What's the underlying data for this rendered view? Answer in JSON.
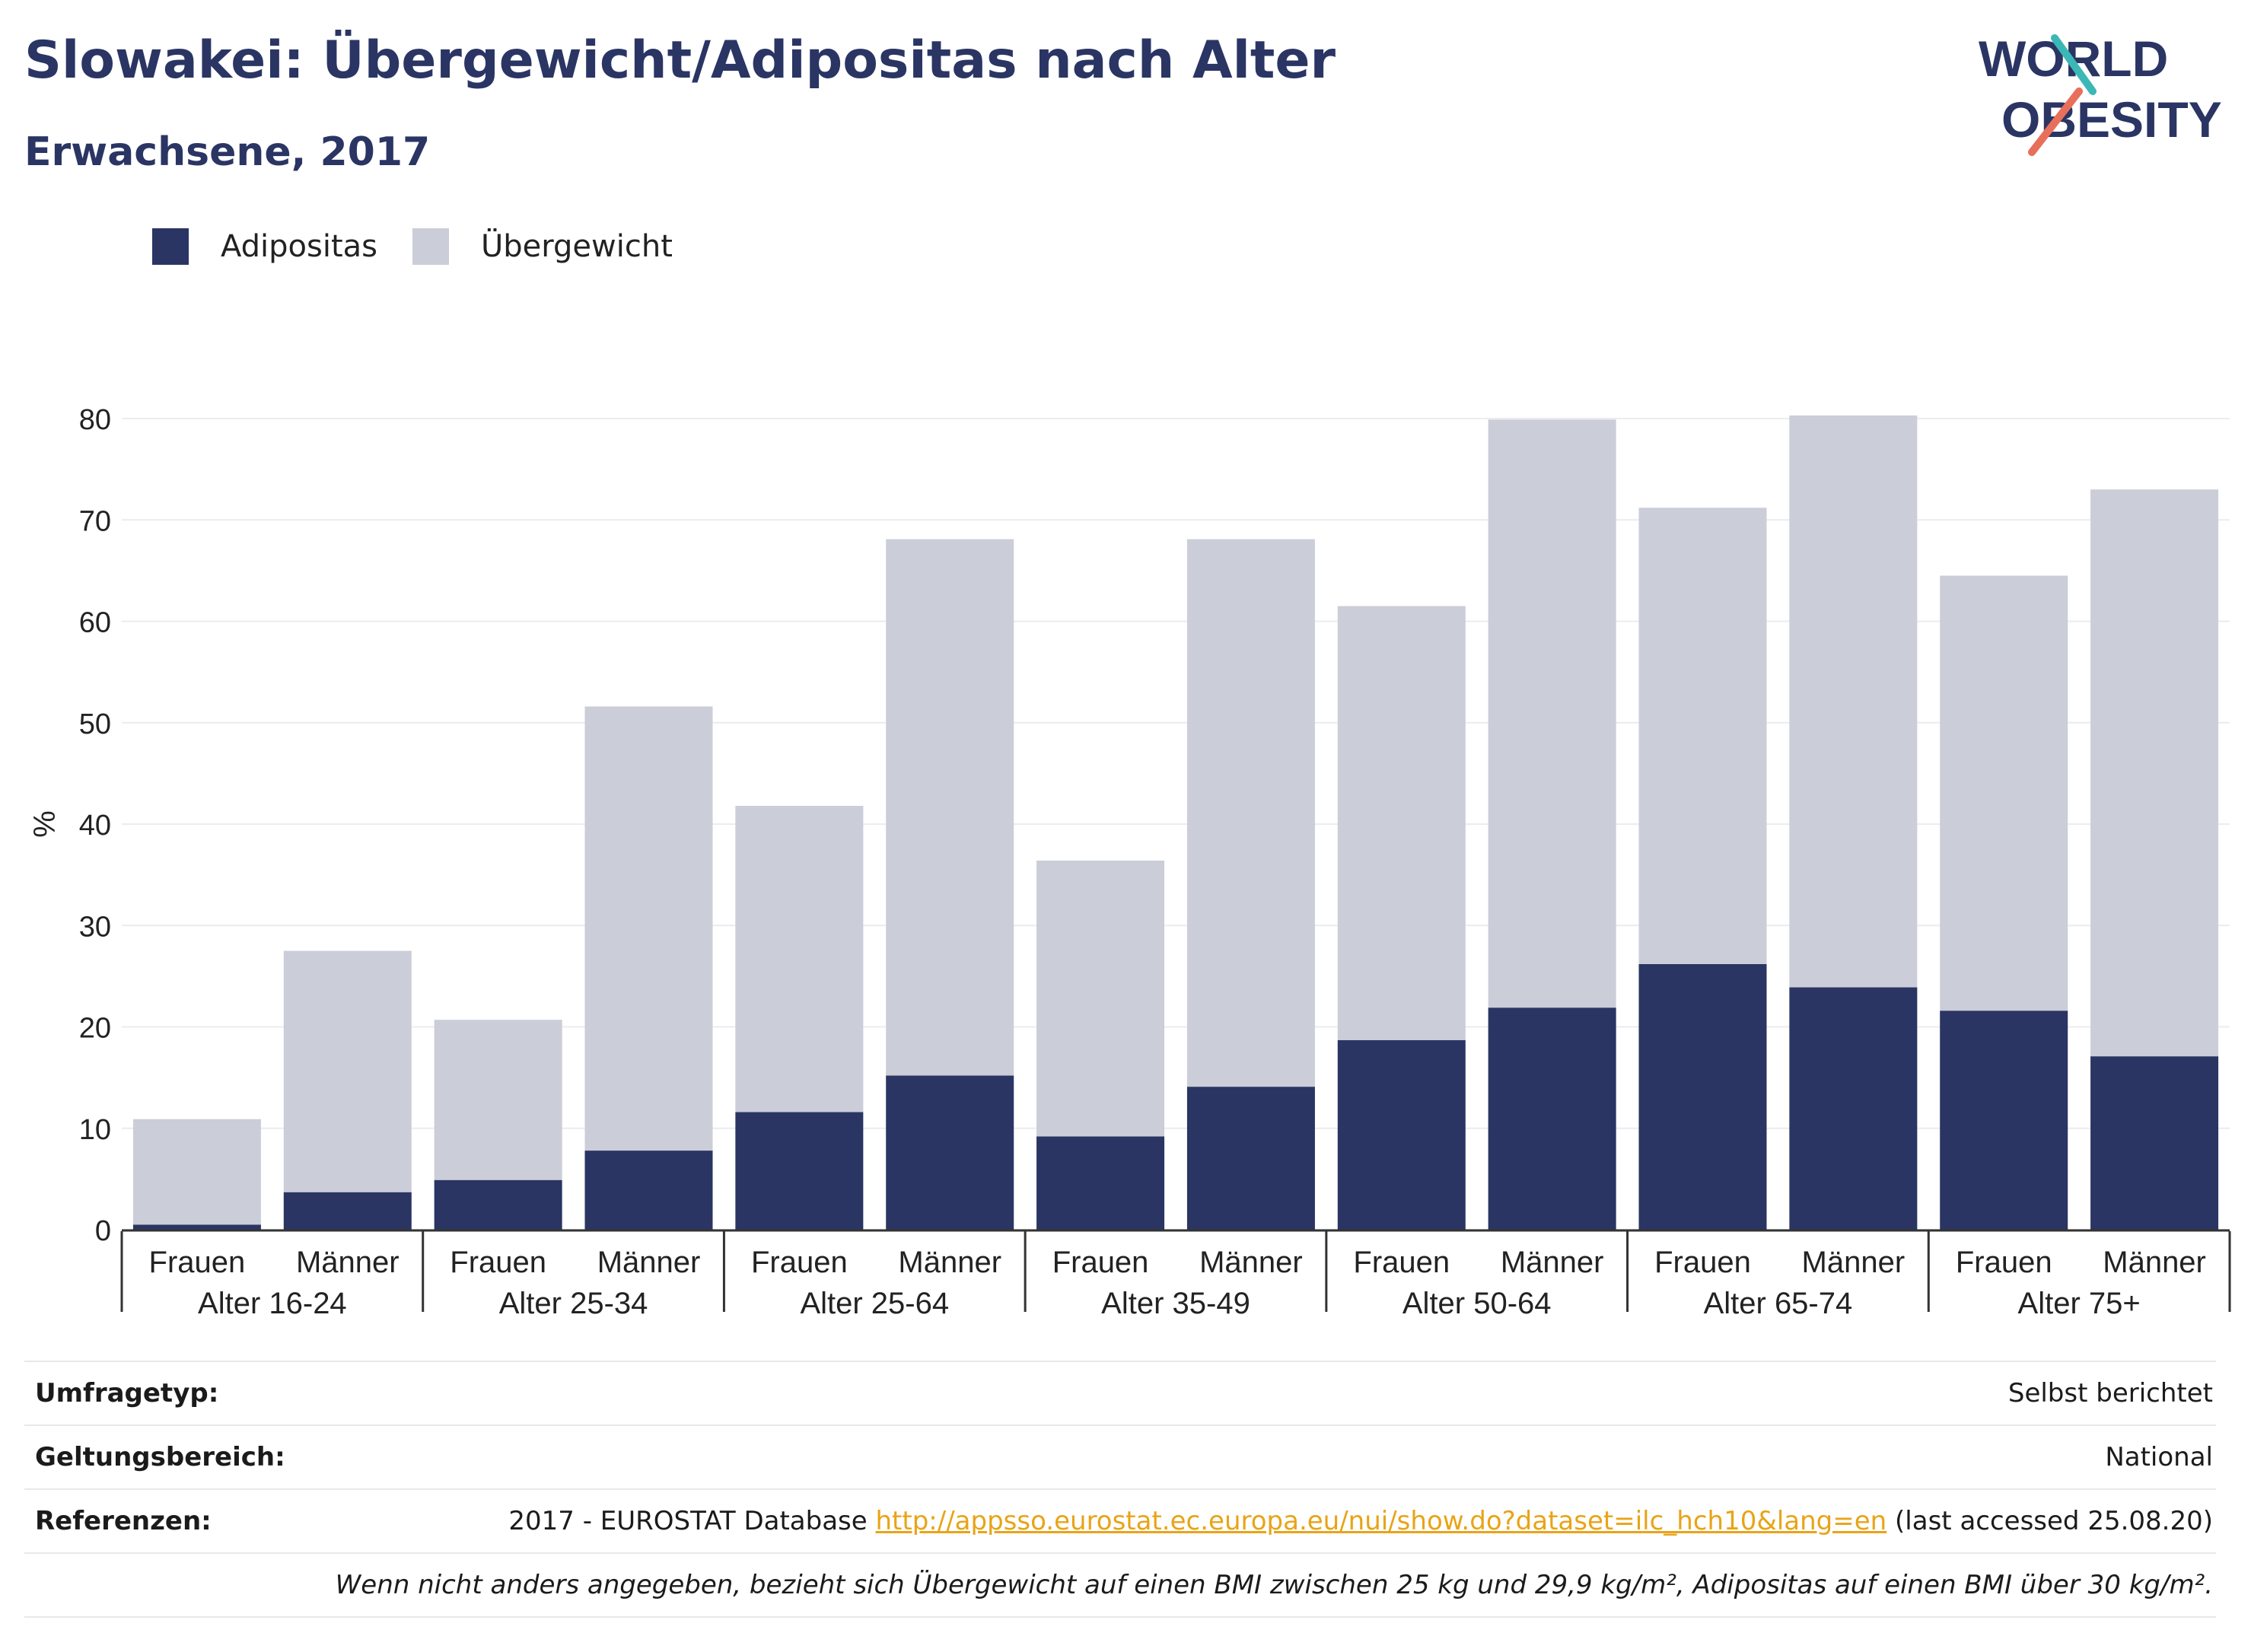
{
  "header": {
    "title": "Slowakei: Übergewicht/Adipositas nach Alter",
    "subtitle": "Erwachsene, 2017"
  },
  "logo": {
    "line1": "WORLD",
    "line2": "OBESITY"
  },
  "colors": {
    "obesity": "#2a3563",
    "overweight": "#cbcdd8",
    "title": "#2a3564",
    "link": "#e8a417"
  },
  "legend": {
    "obesity_label": "Adipositas",
    "overweight_label": "Übergewicht"
  },
  "chart_data": {
    "type": "bar",
    "stacked": true,
    "ylabel": "%",
    "ylim": [
      0,
      80
    ],
    "yticks": [
      0,
      10,
      20,
      30,
      40,
      50,
      60,
      70,
      80
    ],
    "grid": true,
    "legend_position": "top-left",
    "groups": [
      "Alter 16-24",
      "Alter 25-34",
      "Alter 25-64",
      "Alter 35-49",
      "Alter 50-64",
      "Alter 65-74",
      "Alter 75+"
    ],
    "subcategories": [
      "Frauen",
      "Männer"
    ],
    "series": [
      {
        "name": "Adipositas",
        "values": [
          0.5,
          3.7,
          4.9,
          7.8,
          11.6,
          15.2,
          9.2,
          14.1,
          18.7,
          21.9,
          26.2,
          23.9,
          21.6,
          17.1
        ]
      },
      {
        "name": "Übergewicht",
        "values": [
          10.4,
          23.8,
          15.8,
          43.8,
          30.2,
          52.9,
          27.2,
          54.0,
          42.8,
          58.0,
          45.0,
          56.4,
          42.9,
          55.9
        ]
      }
    ],
    "totals": [
      10.9,
      27.5,
      20.7,
      51.6,
      41.8,
      68.1,
      36.4,
      68.1,
      61.5,
      79.9,
      71.2,
      80.3,
      64.5,
      73.0
    ]
  },
  "meta": {
    "survey_label": "Umfragetyp:",
    "survey_value": "Selbst berichtet",
    "scope_label": "Geltungsbereich:",
    "scope_value": "National",
    "ref_label": "Referenzen:",
    "ref_prefix": "2017 - EUROSTAT Database ",
    "ref_link": "http://appsso.eurostat.ec.europa.eu/nui/show.do?dataset=ilc_hch10&lang=en",
    "ref_suffix": " (last accessed 25.08.20)",
    "note": "Wenn nicht anders angegeben, bezieht sich Übergewicht auf einen BMI zwischen 25 kg und 29,9 kg/m², Adipositas auf einen BMI über 30 kg/m²."
  }
}
